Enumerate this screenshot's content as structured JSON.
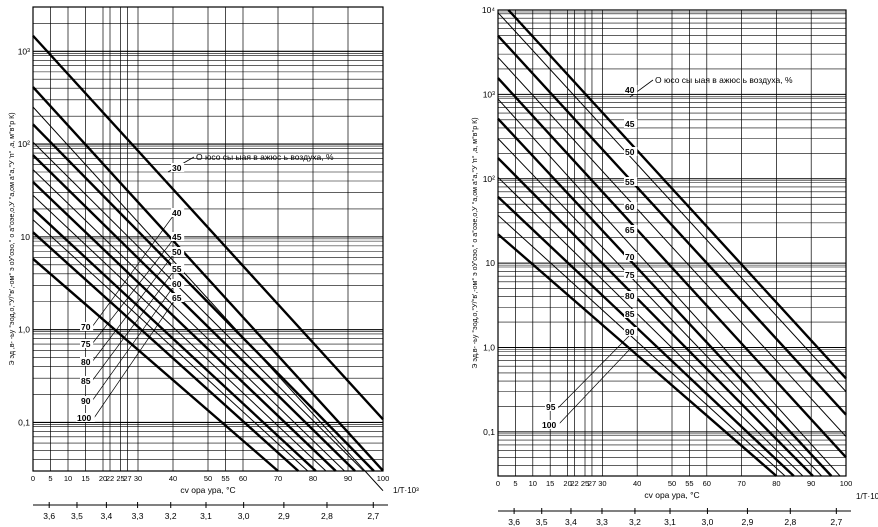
{
  "chart_data": [
    {
      "type": "line",
      "xlabel": "cv  ора ура, °C",
      "ylabel": "Э эд ,в-  -ьу   °эод,о,°У/°в',-ом° э оУ'оэо,° о а°оэе,о,У °а,ом а°а,°У 'п° ,а, м°в°р К)",
      "x_ticks": [
        {
          "v": 0,
          "label": "0"
        },
        {
          "v": 5,
          "label": "5"
        },
        {
          "v": 10,
          "label": "10"
        },
        {
          "v": 15,
          "label": "15"
        },
        {
          "v": 20,
          "label": "20"
        },
        {
          "v": 22,
          "label": "22"
        },
        {
          "v": 25,
          "label": "25"
        },
        {
          "v": 27,
          "label": "27"
        },
        {
          "v": 30,
          "label": "30"
        },
        {
          "v": 40,
          "label": "40"
        },
        {
          "v": 50,
          "label": "50"
        },
        {
          "v": 55,
          "label": "55"
        },
        {
          "v": 60,
          "label": "60"
        },
        {
          "v": 70,
          "label": "70"
        },
        {
          "v": 80,
          "label": "80"
        },
        {
          "v": 90,
          "label": "90"
        },
        {
          "v": 100,
          "label": "100"
        }
      ],
      "y_ticks": [
        {
          "v": 0.1,
          "label": "0,1"
        },
        {
          "v": 1,
          "label": "1,0"
        },
        {
          "v": 10,
          "label": "10"
        },
        {
          "v": 100,
          "label": "10²"
        },
        {
          "v": 1000,
          "label": "10³"
        }
      ],
      "ylim": [
        0.03,
        3000
      ],
      "y_scale": "log",
      "inv_axis_label": "1/T·10³",
      "inv_ticks": [
        "3,6",
        "3,5",
        "3,4",
        "3,3",
        "3,2",
        "3,1",
        "3,0",
        "2,9",
        "2,8",
        "2,7"
      ],
      "annotation": "О юсо  сы ыая в ажюс ь воздуха, %",
      "curve_labels": [
        "30",
        "40",
        "45",
        "50",
        "55",
        "60",
        "65",
        "70",
        "75",
        "80",
        "85",
        "90",
        "100"
      ],
      "series": [
        {
          "rh": 30,
          "bold": true,
          "x": [
            0,
            100
          ],
          "y": [
            1470,
            0.108
          ]
        },
        {
          "rh": 40,
          "bold": true,
          "x": [
            0,
            100
          ],
          "y": [
            412,
            0.0302
          ]
        },
        {
          "rh": 45,
          "bold": false,
          "x": [
            0,
            100
          ],
          "y": [
            251,
            0.0184
          ]
        },
        {
          "rh": 50,
          "bold": true,
          "x": [
            0,
            97.4
          ],
          "y": [
            163,
            0.03
          ]
        },
        {
          "rh": 55,
          "bold": false,
          "x": [
            0,
            94.5
          ],
          "y": [
            105,
            0.03
          ]
        },
        {
          "rh": 60,
          "bold": true,
          "x": [
            0,
            92.0
          ],
          "y": [
            76,
            0.03
          ]
        },
        {
          "rh": 65,
          "bold": false,
          "x": [
            0,
            89.0
          ],
          "y": [
            53,
            0.03
          ]
        },
        {
          "rh": 70,
          "bold": true,
          "x": [
            0,
            86.5
          ],
          "y": [
            39,
            0.03
          ]
        },
        {
          "rh": 75,
          "bold": false,
          "x": [
            0,
            83.7
          ],
          "y": [
            28,
            0.03
          ]
        },
        {
          "rh": 80,
          "bold": true,
          "x": [
            0,
            80.8
          ],
          "y": [
            20,
            0.03
          ]
        },
        {
          "rh": 85,
          "bold": false,
          "x": [
            0,
            78.5
          ],
          "y": [
            15.3,
            0.03
          ]
        },
        {
          "rh": 90,
          "bold": true,
          "x": [
            0,
            75.8
          ],
          "y": [
            11.2,
            0.03
          ]
        },
        {
          "rh": 100,
          "bold": true,
          "x": [
            0,
            70.0
          ],
          "y": [
            5.8,
            0.03
          ]
        }
      ]
    },
    {
      "type": "line",
      "xlabel": "cv  ора ура, °C",
      "ylabel": "Э эд,в-  -ьу   °эод,о,°У/°в',-ом° э оУ'оэо,° о а°оэе,о,У °а,ом а°а,°У 'п° ,а, м°в°р К)",
      "x_ticks": [
        {
          "v": 0,
          "label": "0"
        },
        {
          "v": 5,
          "label": "5"
        },
        {
          "v": 10,
          "label": "10"
        },
        {
          "v": 15,
          "label": "15"
        },
        {
          "v": 20,
          "label": "20"
        },
        {
          "v": 22,
          "label": "22"
        },
        {
          "v": 25,
          "label": "25"
        },
        {
          "v": 27,
          "label": "27"
        },
        {
          "v": 30,
          "label": "30"
        },
        {
          "v": 40,
          "label": "40"
        },
        {
          "v": 50,
          "label": "50"
        },
        {
          "v": 55,
          "label": "55"
        },
        {
          "v": 60,
          "label": "60"
        },
        {
          "v": 70,
          "label": "70"
        },
        {
          "v": 80,
          "label": "80"
        },
        {
          "v": 90,
          "label": "90"
        },
        {
          "v": 100,
          "label": "100"
        }
      ],
      "y_ticks": [
        {
          "v": 0.1,
          "label": "0,1"
        },
        {
          "v": 1,
          "label": "1,0"
        },
        {
          "v": 10,
          "label": "10"
        },
        {
          "v": 100,
          "label": "10²"
        },
        {
          "v": 1000,
          "label": "10³"
        },
        {
          "v": 10000,
          "label": "10⁴"
        }
      ],
      "ylim": [
        0.03,
        10000
      ],
      "y_scale": "log",
      "inv_axis_label": "1/T·10³",
      "inv_ticks": [
        "3,6",
        "3,5",
        "3,4",
        "3,3",
        "3,2",
        "3,1",
        "3,0",
        "2,9",
        "2,8",
        "2,7"
      ],
      "annotation": "О юсо  сы ыая в ажюс ь воздуха, %",
      "curve_labels": [
        "40",
        "45",
        "50",
        "55",
        "60",
        "65",
        "70",
        "75",
        "80",
        "85",
        "90",
        "95",
        "100"
      ],
      "series": [
        {
          "rh": 40,
          "bold": true,
          "x": [
            3,
            100
          ],
          "y": [
            10000,
            0.43
          ]
        },
        {
          "rh": 45,
          "bold": false,
          "x": [
            0,
            100
          ],
          "y": [
            9300,
            0.3
          ]
        },
        {
          "rh": 50,
          "bold": true,
          "x": [
            0,
            100
          ],
          "y": [
            4950,
            0.16
          ]
        },
        {
          "rh": 55,
          "bold": false,
          "x": [
            0,
            100
          ],
          "y": [
            2750,
            0.088
          ]
        },
        {
          "rh": 60,
          "bold": true,
          "x": [
            0,
            100
          ],
          "y": [
            1560,
            0.05
          ]
        },
        {
          "rh": 65,
          "bold": false,
          "x": [
            0,
            98.3
          ],
          "y": [
            880,
            0.03
          ]
        },
        {
          "rh": 70,
          "bold": true,
          "x": [
            0,
            95.8
          ],
          "y": [
            515,
            0.03
          ]
        },
        {
          "rh": 75,
          "bold": false,
          "x": [
            0,
            93.0
          ],
          "y": [
            300,
            0.03
          ]
        },
        {
          "rh": 80,
          "bold": true,
          "x": [
            0,
            90.5
          ],
          "y": [
            176,
            0.03
          ]
        },
        {
          "rh": 85,
          "bold": false,
          "x": [
            0,
            87.6
          ],
          "y": [
            104,
            0.03
          ]
        },
        {
          "rh": 90,
          "bold": true,
          "x": [
            0,
            85.0
          ],
          "y": [
            61,
            0.03
          ]
        },
        {
          "rh": 95,
          "bold": false,
          "x": [
            0,
            82.5
          ],
          "y": [
            37,
            0.03
          ]
        },
        {
          "rh": 100,
          "bold": true,
          "x": [
            0,
            80.0
          ],
          "y": [
            22,
            0.03
          ]
        }
      ]
    }
  ]
}
